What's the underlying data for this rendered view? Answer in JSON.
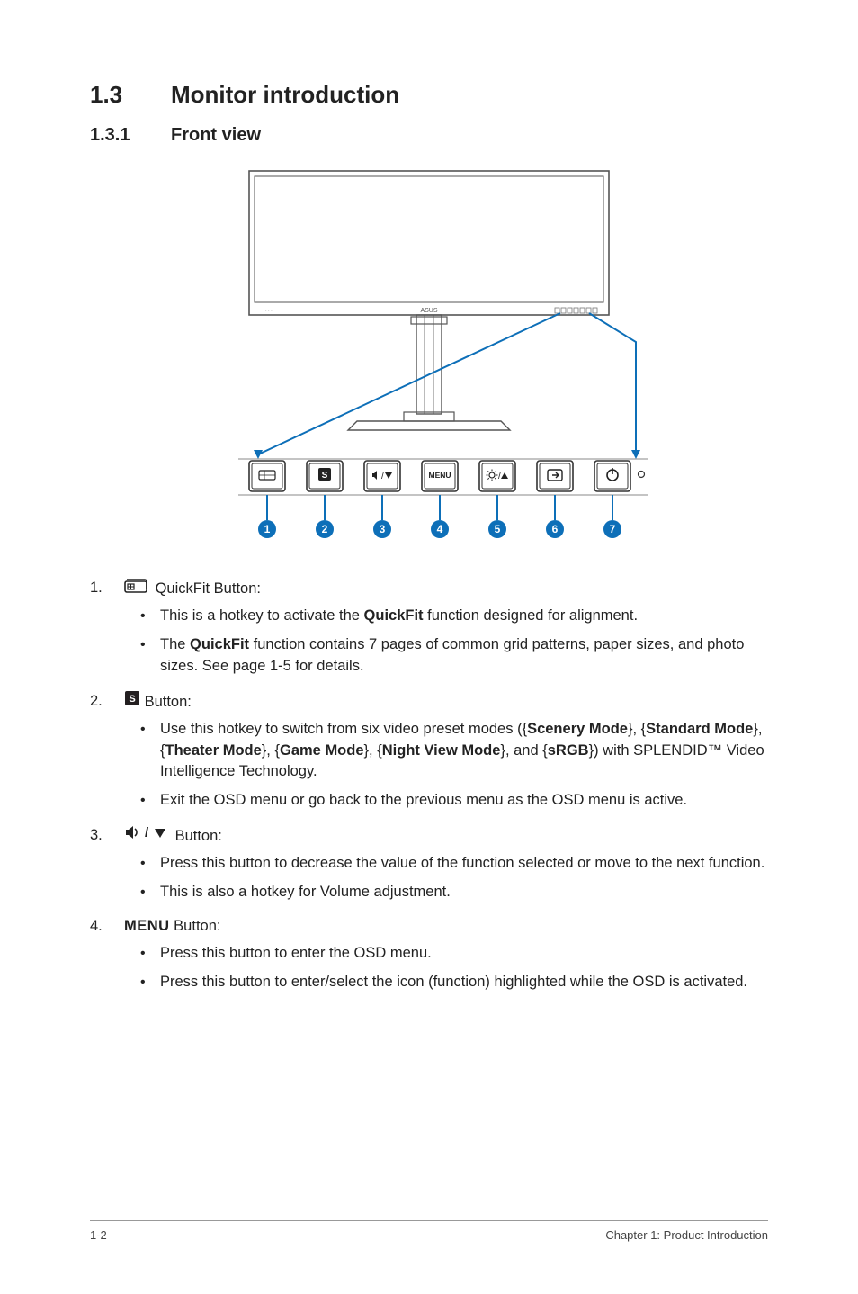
{
  "section": {
    "number": "1.3",
    "title": "Monitor introduction"
  },
  "subsection": {
    "number": "1.3.1",
    "title": "Front view"
  },
  "figure": {
    "callouts": [
      "1",
      "2",
      "3",
      "4",
      "5",
      "6",
      "7"
    ],
    "callout_fill": "#0d6fb8",
    "callout_text": "#ffffff",
    "leader_color": "#0d6fb8",
    "monitor_stroke": "#555555",
    "button_stroke": "#333333",
    "led_fill": "#666666",
    "brand_text": "ASUS",
    "btn_menu_label": "MENU"
  },
  "items": [
    {
      "num": "1.",
      "icon": "quickfit",
      "label_suffix": " QuickFit Button:",
      "bullets": [
        {
          "pre": "This is a hotkey to activate the ",
          "b1": "QuickFit",
          "post": " function designed for alignment."
        },
        {
          "pre": "The ",
          "b1": "QuickFit",
          "post": " function contains 7 pages of common grid patterns, paper sizes, and photo sizes. See page 1-5 for details."
        }
      ]
    },
    {
      "num": "2.",
      "icon": "s-badge",
      "label_suffix": " Button:",
      "bullets": [
        {
          "pre": "Use this hotkey to switch from six video preset modes ({",
          "b1": "Scenery Mode",
          "mid1": "}, {",
          "b2": "Standard Mode",
          "mid2": "}, {",
          "b3": "Theater Mode",
          "mid3": "}, {",
          "b4": "Game Mode",
          "mid4": "}, {",
          "b5": "Night View Mode",
          "mid5": "}, and {",
          "b6": "sRGB",
          "post": "}) with SPLENDID™ Video Intelligence Technology."
        },
        {
          "pre": "Exit the OSD menu or go back to the previous menu as the OSD menu is active."
        }
      ]
    },
    {
      "num": "3.",
      "icon": "vol-down",
      "label_suffix": " Button:",
      "bullets": [
        {
          "pre": "Press this button to decrease the value of the function selected or move to the next function."
        },
        {
          "pre": "This is also a hotkey for Volume adjustment."
        }
      ]
    },
    {
      "num": "4.",
      "icon": "menu-word",
      "label_suffix": " Button:",
      "bullets": [
        {
          "pre": "Press this button to enter the OSD menu."
        },
        {
          "pre": "Press this button to enter/select the icon (function) highlighted while the OSD is activated."
        }
      ]
    }
  ],
  "icons": {
    "s_badge_bg": "#231f20",
    "s_badge_fg": "#ffffff",
    "menu_word": "MENU",
    "slash": "/"
  },
  "footer": {
    "left": "1-2",
    "right": "Chapter 1: Product Introduction"
  }
}
